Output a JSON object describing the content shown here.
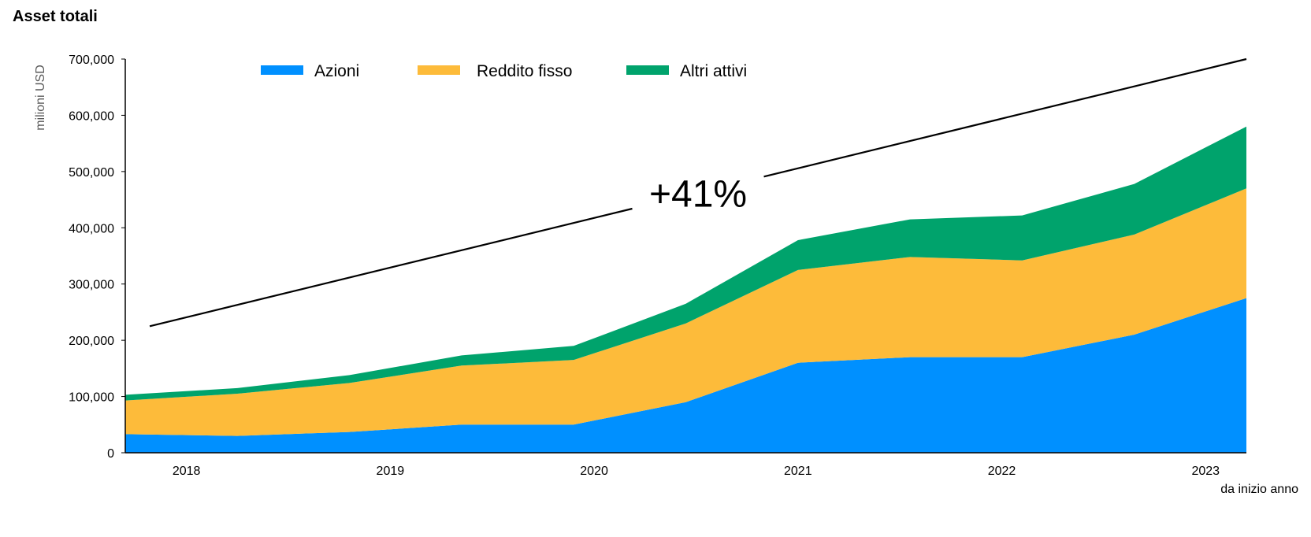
{
  "chart_data": {
    "type": "area",
    "stacked": true,
    "title": "Asset totali",
    "ylabel": "milioni USD",
    "xlabel": "",
    "ylim": [
      0,
      700000
    ],
    "yticks": [
      0,
      100000,
      200000,
      300000,
      400000,
      500000,
      600000,
      700000
    ],
    "ytick_labels": [
      "0",
      "100,000",
      "200,000",
      "300,000",
      "400,000",
      "500,000",
      "600,000",
      "700,000"
    ],
    "x_tick_labels": [
      "2018",
      "2019",
      "2020",
      "2021",
      "2022",
      "2023"
    ],
    "x_tick_note": "da inizio anno",
    "x": [
      2017.7,
      2018.25,
      2018.8,
      2019.35,
      2019.9,
      2020.45,
      2021.0,
      2021.55,
      2022.1,
      2022.65,
      2023.2
    ],
    "series": [
      {
        "name": "Azioni",
        "color": "#0090FF",
        "values": [
          33000,
          30000,
          37000,
          50000,
          50000,
          90000,
          160000,
          170000,
          170000,
          210000,
          275000
        ]
      },
      {
        "name": "Reddito fisso",
        "color": "#FDBB3A",
        "values": [
          60000,
          75000,
          87000,
          105000,
          115000,
          140000,
          165000,
          178000,
          172000,
          178000,
          195000
        ]
      },
      {
        "name": "Altri attivi",
        "color": "#00A36C",
        "values": [
          10000,
          10000,
          14000,
          18000,
          25000,
          35000,
          53000,
          67000,
          80000,
          90000,
          110000
        ]
      }
    ],
    "legend": "top",
    "grid": false,
    "annotations": [
      {
        "text": "+41%",
        "line_start": [
          2017.82,
          225000
        ],
        "line_end": [
          2023.2,
          700000
        ]
      }
    ]
  }
}
